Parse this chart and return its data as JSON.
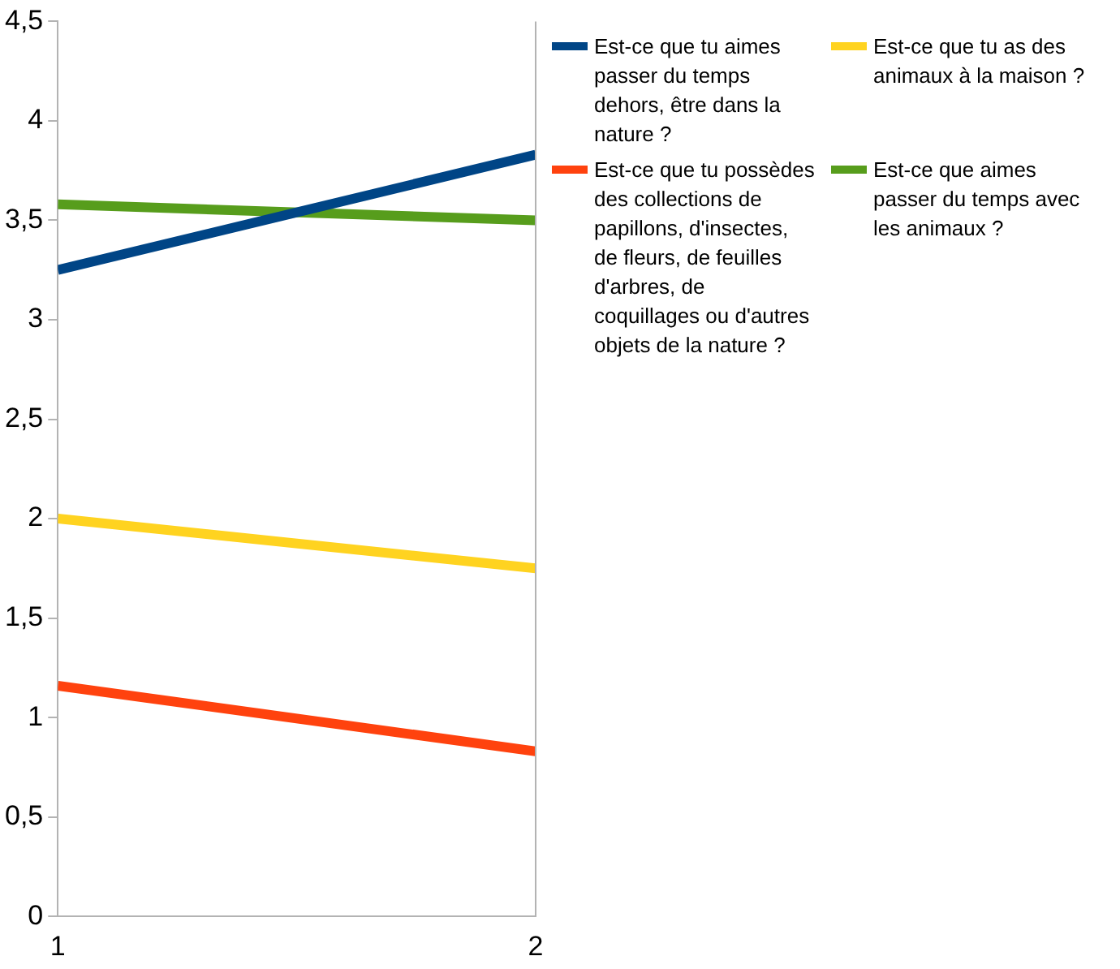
{
  "chart_data": {
    "type": "line",
    "x": [
      1,
      2
    ],
    "xlim": [
      1,
      2
    ],
    "xticks": [
      1,
      2
    ],
    "ylim": [
      0,
      4.5
    ],
    "yticks": [
      0,
      {
        "value": 0.5,
        "label": "0,5"
      },
      1,
      {
        "value": 1.5,
        "label": "1,5"
      },
      2,
      {
        "value": 2.5,
        "label": "2,5"
      },
      3,
      {
        "value": 3.5,
        "label": "3,5"
      },
      4,
      {
        "value": 4.5,
        "label": "4,5"
      }
    ],
    "legend": "right",
    "marker": "none",
    "line_style": "solid",
    "series": [
      {
        "name": "Est-ce que tu aimes passer du temps dehors, être dans la nature ?",
        "color": "#004586",
        "values": [
          3.25,
          3.83
        ]
      },
      {
        "name": "Est-ce que tu as des animaux à la maison ?",
        "color": "#ffd320",
        "values": [
          2.0,
          1.75
        ]
      },
      {
        "name": "Est-ce que tu possèdes des collections de papillons, d'insectes, de fleurs, de feuilles d'arbres, de coquillages ou d'autres objets de la nature ?",
        "color": "#ff420e",
        "values": [
          1.16,
          0.83
        ]
      },
      {
        "name": "Est-ce que aimes passer du temps avec les animaux ?",
        "color": "#579d1c",
        "values": [
          3.58,
          3.5
        ]
      }
    ]
  }
}
